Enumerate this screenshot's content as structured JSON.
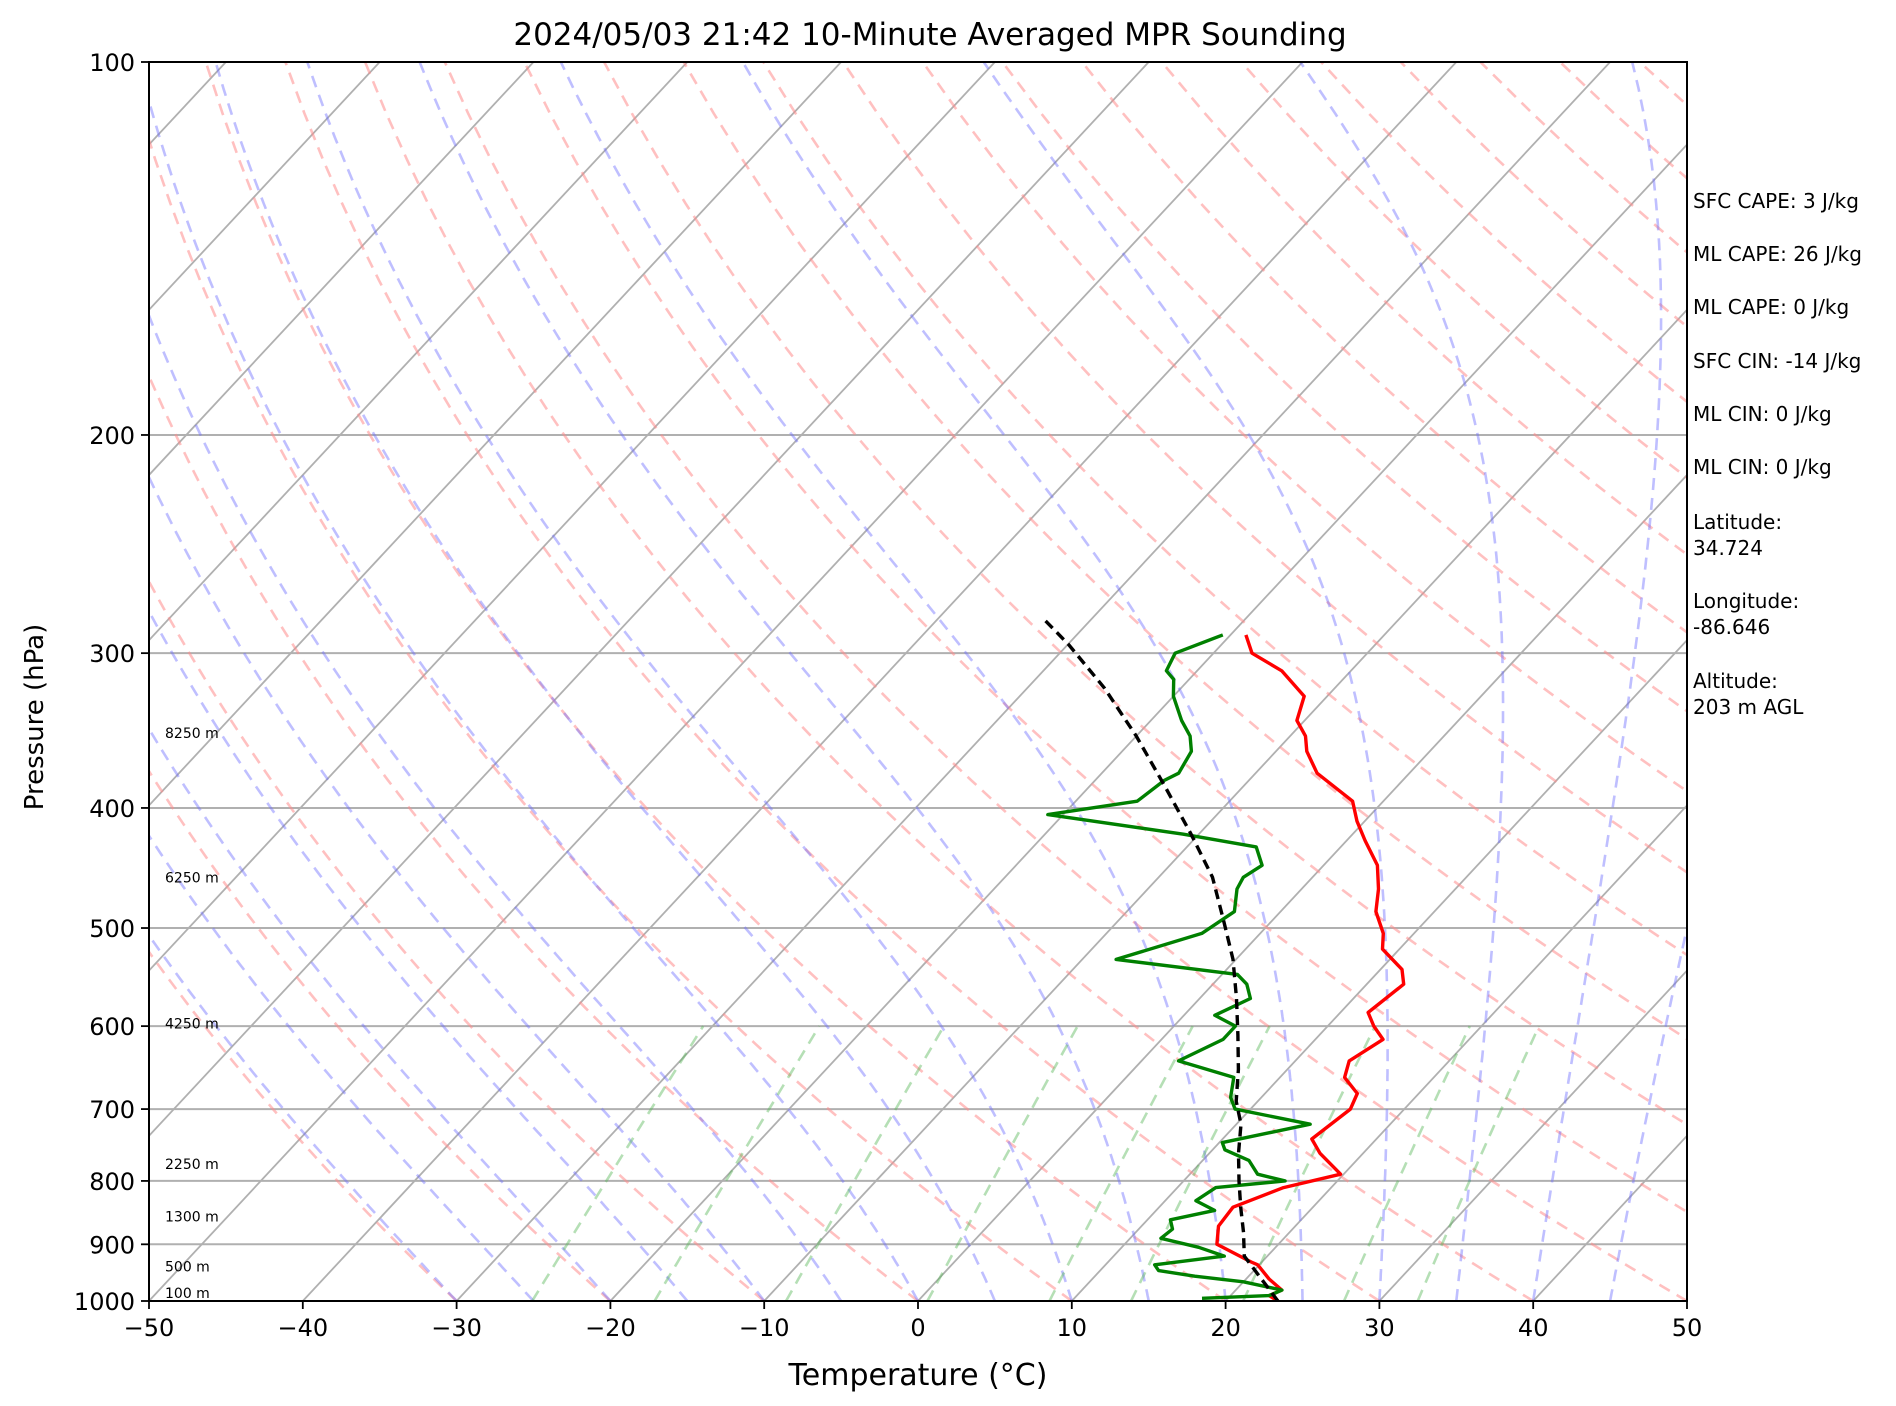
{
  "chart_data": {
    "type": "line",
    "title": "2024/05/03 21:42 10-Minute Averaged MPR Sounding",
    "xlabel": "Temperature (°C)",
    "ylabel": "Pressure (hPa)",
    "xlim": [
      -50,
      50
    ],
    "ylim": [
      1000,
      100
    ],
    "yscale": "log",
    "grid": true,
    "x_ticks": [
      "−50",
      "−40",
      "−30",
      "−20",
      "−10",
      "0",
      "10",
      "20",
      "30",
      "40",
      "50"
    ],
    "y_ticks": [
      "100",
      "200",
      "300",
      "400",
      "500",
      "600",
      "700",
      "800",
      "900",
      "1000"
    ],
    "height_labels": [
      "8250 m",
      "6250 m",
      "4250 m",
      "2250 m",
      "1300 m",
      "500 m",
      "100 m"
    ],
    "series": [
      {
        "role": "temperature",
        "color": "#ff0000",
        "points": [
          [
            23.4,
            1000
          ],
          [
            22.5,
            990
          ],
          [
            23.0,
            980
          ],
          [
            21.5,
            960
          ],
          [
            19.9,
            935
          ],
          [
            19.3,
            930
          ],
          [
            16.0,
            900
          ],
          [
            15.0,
            870
          ],
          [
            14.8,
            840
          ],
          [
            16.9,
            810
          ],
          [
            19.8,
            790
          ],
          [
            17.2,
            760
          ],
          [
            15.8,
            740
          ],
          [
            16.5,
            700
          ],
          [
            16.0,
            680
          ],
          [
            14.2,
            660
          ],
          [
            13.5,
            640
          ],
          [
            14.4,
            615
          ],
          [
            13.0,
            600
          ],
          [
            11.8,
            585
          ],
          [
            12.4,
            555
          ],
          [
            11.4,
            540
          ],
          [
            8.9,
            520
          ],
          [
            8.0,
            505
          ],
          [
            6.2,
            485
          ],
          [
            5.0,
            465
          ],
          [
            3.5,
            445
          ],
          [
            1.2,
            425
          ],
          [
            -0.5,
            410
          ],
          [
            -2.0,
            395
          ],
          [
            -6.0,
            375
          ],
          [
            -8.0,
            360
          ],
          [
            -9.0,
            350
          ],
          [
            -10.5,
            340
          ],
          [
            -11.5,
            325
          ],
          [
            -14.5,
            310
          ],
          [
            -17.5,
            300
          ],
          [
            -19.0,
            290
          ]
        ]
      },
      {
        "role": "dewpoint",
        "color": "#008000",
        "points": [
          [
            18.3,
            995
          ],
          [
            22.5,
            990
          ],
          [
            23.0,
            980
          ],
          [
            20.0,
            965
          ],
          [
            16.5,
            955
          ],
          [
            13.8,
            945
          ],
          [
            13.2,
            935
          ],
          [
            17.2,
            920
          ],
          [
            15.0,
            905
          ],
          [
            12.0,
            890
          ],
          [
            12.2,
            875
          ],
          [
            11.5,
            860
          ],
          [
            13.8,
            845
          ],
          [
            12.0,
            830
          ],
          [
            12.5,
            810
          ],
          [
            16.6,
            800
          ],
          [
            14.4,
            790
          ],
          [
            13.0,
            770
          ],
          [
            10.8,
            755
          ],
          [
            10.2,
            745
          ],
          [
            14.8,
            720
          ],
          [
            9.0,
            700
          ],
          [
            8.0,
            685
          ],
          [
            7.0,
            660
          ],
          [
            2.4,
            640
          ],
          [
            4.0,
            615
          ],
          [
            4.0,
            600
          ],
          [
            2.0,
            588
          ],
          [
            3.3,
            570
          ],
          [
            2.2,
            555
          ],
          [
            1.0,
            545
          ],
          [
            -7.8,
            530
          ],
          [
            -3.8,
            505
          ],
          [
            -3.0,
            485
          ],
          [
            -4.2,
            465
          ],
          [
            -4.5,
            455
          ],
          [
            -4.0,
            445
          ],
          [
            -5.5,
            430
          ],
          [
            -11.0,
            420
          ],
          [
            -21.0,
            405
          ],
          [
            -16.0,
            395
          ],
          [
            -15.5,
            380
          ],
          [
            -15.0,
            375
          ],
          [
            -15.5,
            360
          ],
          [
            -16.5,
            350
          ],
          [
            -18.0,
            340
          ],
          [
            -20.0,
            325
          ],
          [
            -21.0,
            315
          ],
          [
            -22.0,
            310
          ],
          [
            -22.5,
            300
          ],
          [
            -20.5,
            290
          ]
        ]
      },
      {
        "role": "parcel",
        "color": "#000000",
        "dashed": true,
        "points": [
          [
            23.4,
            1000
          ],
          [
            21.0,
            960
          ],
          [
            18.5,
            920
          ],
          [
            17.0,
            880
          ],
          [
            15.3,
            840
          ],
          [
            13.6,
            800
          ],
          [
            11.9,
            760
          ],
          [
            10.3,
            720
          ],
          [
            8.6,
            690
          ],
          [
            6.8,
            650
          ],
          [
            4.7,
            610
          ],
          [
            2.4,
            570
          ],
          [
            -0.2,
            530
          ],
          [
            -3.0,
            495
          ],
          [
            -6.5,
            455
          ],
          [
            -10.5,
            420
          ],
          [
            -15.0,
            385
          ],
          [
            -20.0,
            350
          ],
          [
            -25.0,
            320
          ],
          [
            -30.0,
            295
          ],
          [
            -33.0,
            282
          ]
        ]
      }
    ]
  },
  "info": {
    "sfc_cape": "SFC CAPE: 3 J/kg",
    "ml_cape_1": "ML CAPE: 26 J/kg",
    "ml_cape_2": "ML CAPE: 0 J/kg",
    "sfc_cin": "SFC CIN: -14 J/kg",
    "ml_cin_1": "ML CIN: 0 J/kg",
    "ml_cin_2": "ML CIN: 0 J/kg",
    "latitude": "Latitude:\n34.724",
    "longitude": "Longitude:\n-86.646",
    "altitude": "Altitude:\n203 m AGL"
  }
}
